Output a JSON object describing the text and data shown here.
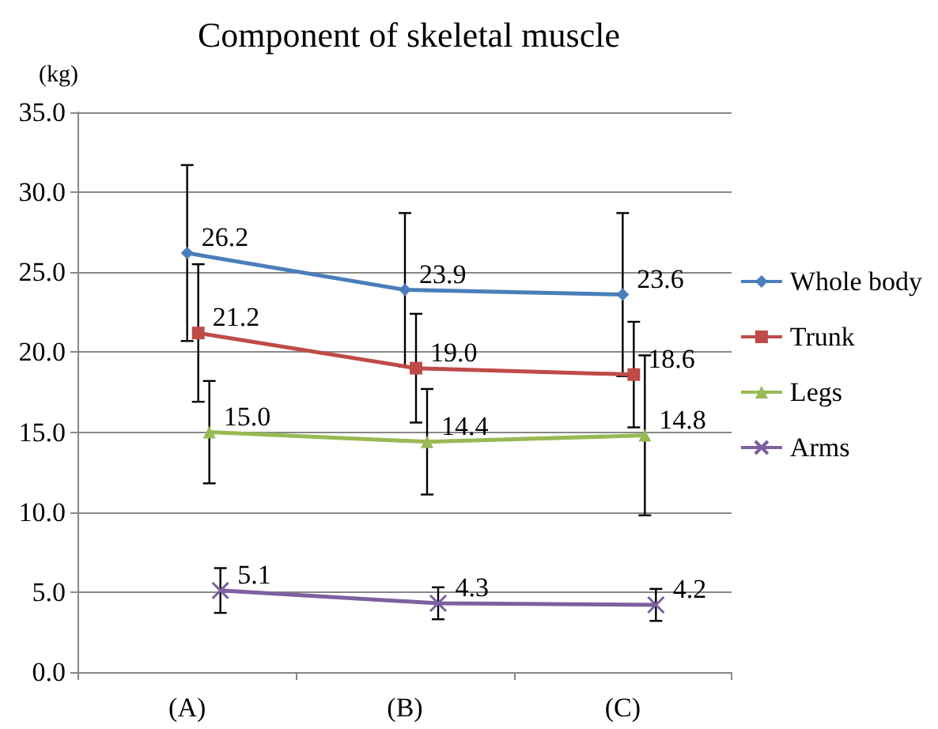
{
  "chart_data": {
    "type": "line",
    "title": "Component of skeletal muscle",
    "ylabel": "(kg)",
    "categories": [
      "(A)",
      "(B)",
      "(C)"
    ],
    "series": [
      {
        "name": "Whole body",
        "color": "#4a7ebb",
        "marker": "diamond",
        "values": [
          26.2,
          23.9,
          23.6
        ],
        "value_labels": [
          "26.2",
          "23.9",
          "23.6"
        ],
        "errors": [
          5.5,
          4.8,
          5.1
        ]
      },
      {
        "name": "Trunk",
        "color": "#be4b48",
        "marker": "square",
        "values": [
          21.2,
          19.0,
          18.6
        ],
        "value_labels": [
          "21.2",
          "19.0",
          "18.6"
        ],
        "errors": [
          4.3,
          3.4,
          3.3
        ]
      },
      {
        "name": "Legs",
        "color": "#98b954",
        "marker": "triangle",
        "values": [
          15.0,
          14.4,
          14.8
        ],
        "value_labels": [
          "15.0",
          "14.4",
          "14.8"
        ],
        "errors": [
          3.2,
          3.3,
          5.0
        ]
      },
      {
        "name": "Arms",
        "color": "#7d60a0",
        "marker": "cross",
        "values": [
          5.1,
          4.3,
          4.2
        ],
        "value_labels": [
          "5.1",
          "4.3",
          "4.2"
        ],
        "errors": [
          1.4,
          1.0,
          1.0
        ]
      }
    ],
    "ylim": [
      0,
      35
    ],
    "yticks": [
      {
        "value": 0,
        "label": "0.0"
      },
      {
        "value": 5,
        "label": "5.0"
      },
      {
        "value": 10,
        "label": "10.0"
      },
      {
        "value": 15,
        "label": "15.0"
      },
      {
        "value": 20,
        "label": "20.0"
      },
      {
        "value": 25,
        "label": "25.0"
      },
      {
        "value": 30,
        "label": "30.0"
      },
      {
        "value": 35,
        "label": "35.0"
      }
    ],
    "grid": "y",
    "legend": "right"
  }
}
